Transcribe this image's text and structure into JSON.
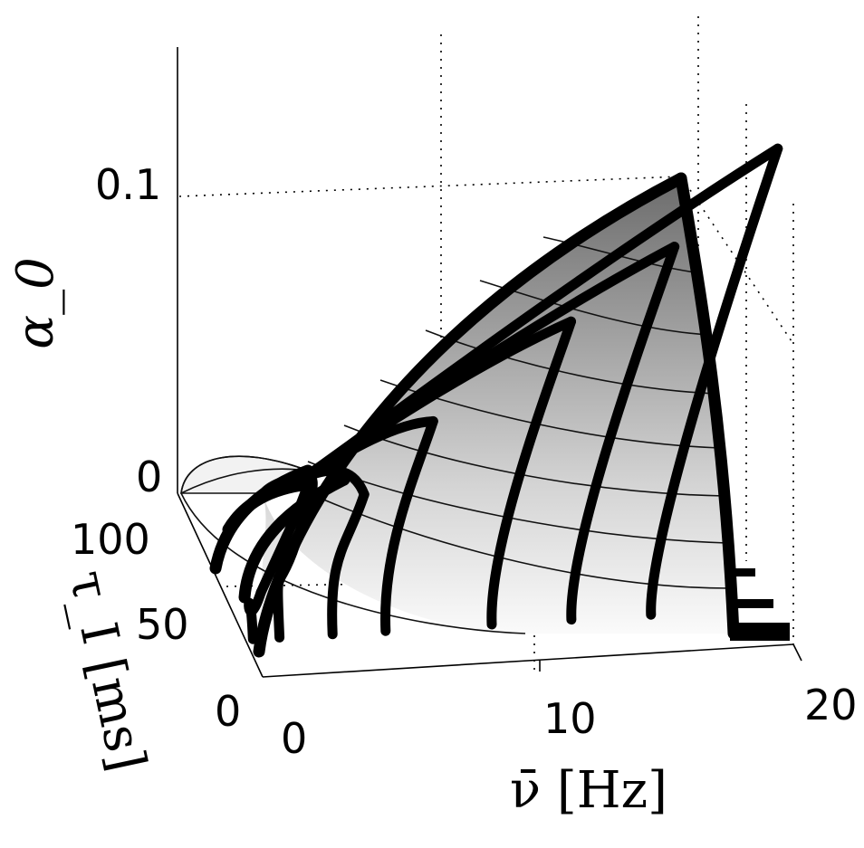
{
  "chart_data": {
    "type": "surface3d",
    "xlabel": "ν̄ [Hz]",
    "ylabel": "τ_I [ms]",
    "zlabel": "α_0",
    "x_ticks": [
      "0",
      "10",
      "20"
    ],
    "y_ticks": [
      "0",
      "50",
      "100"
    ],
    "z_ticks": [
      "0",
      "0.1"
    ],
    "xlim": [
      0,
      20
    ],
    "ylim": [
      0,
      100
    ],
    "zlim": [
      0,
      0.12
    ],
    "grid": true,
    "colormap": "grayscale, darker with increasing α_0",
    "surface_peak": {
      "x": 16,
      "y": 0,
      "z": 0.1
    },
    "series": [
      {
        "x": 1,
        "z_max": 0.01
      },
      {
        "x": 2,
        "z_max": 0.02
      },
      {
        "x": 4,
        "z_max": 0.03
      },
      {
        "x": 6,
        "z_max": 0.045
      },
      {
        "x": 10,
        "z_max": 0.065
      },
      {
        "x": 13,
        "z_max": 0.08
      },
      {
        "x": 16,
        "z_max": 0.1
      }
    ]
  }
}
